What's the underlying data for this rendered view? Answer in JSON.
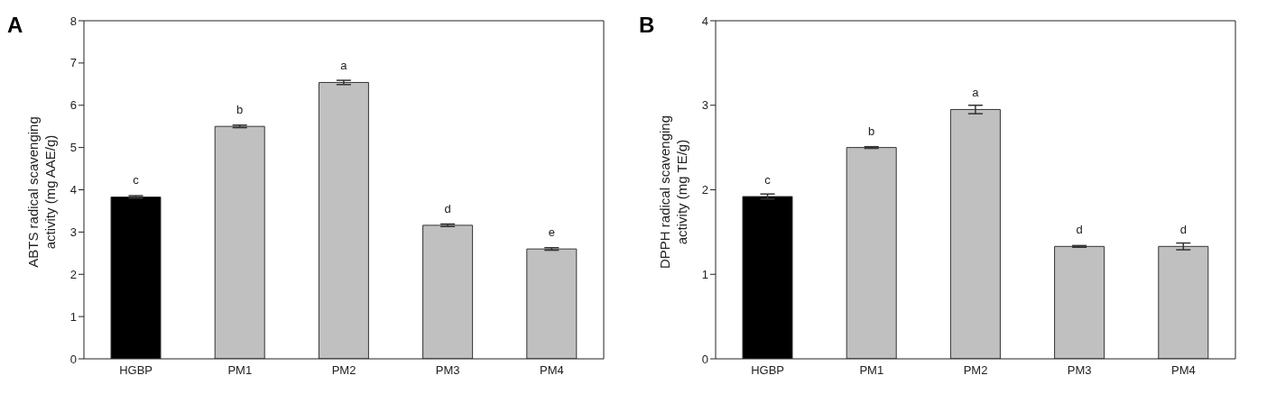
{
  "chart_data": [
    {
      "type": "bar",
      "title": "A",
      "ylabel": "ABTS radical scavenging\nactivity (mg AAE/g)",
      "categories": [
        "HGBP",
        "PM1",
        "PM2",
        "PM3",
        "PM4"
      ],
      "values": [
        3.83,
        5.5,
        6.54,
        3.16,
        2.6
      ],
      "errors": [
        0.03,
        0.03,
        0.05,
        0.03,
        0.03
      ],
      "value_labels": [
        "c",
        "b",
        "a",
        "d",
        "e"
      ],
      "colors": [
        "#000000",
        "#c0c0c0",
        "#c0c0c0",
        "#c0c0c0",
        "#c0c0c0"
      ],
      "ylim": [
        0,
        8
      ],
      "yticks": [
        0,
        1,
        2,
        3,
        4,
        5,
        6,
        7,
        8
      ],
      "grid": false,
      "legend": false
    },
    {
      "type": "bar",
      "title": "B",
      "ylabel": "DPPH radical scavenging\nactivity (mg TE/g)",
      "categories": [
        "HGBP",
        "PM1",
        "PM2",
        "PM3",
        "PM4"
      ],
      "values": [
        1.92,
        2.5,
        2.95,
        1.33,
        1.33
      ],
      "errors": [
        0.03,
        0.01,
        0.05,
        0.01,
        0.04
      ],
      "value_labels": [
        "c",
        "b",
        "a",
        "d",
        "d"
      ],
      "colors": [
        "#000000",
        "#c0c0c0",
        "#c0c0c0",
        "#c0c0c0",
        "#c0c0c0"
      ],
      "ylim": [
        0,
        4
      ],
      "yticks": [
        0,
        1,
        2,
        3,
        4
      ],
      "grid": false,
      "legend": false
    }
  ]
}
